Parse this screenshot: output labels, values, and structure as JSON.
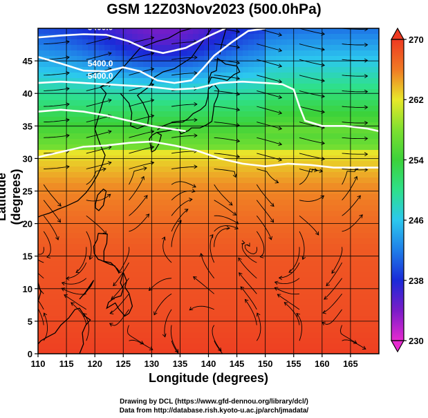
{
  "chart_data": {
    "type": "heatmap",
    "title": "GSM 12Z03Nov2023 (500.0hPa)",
    "xlabel": "Longitude (degrees)",
    "ylabel": "Latitude  (degrees)",
    "xlim": [
      110,
      170
    ],
    "ylim": [
      0,
      50
    ],
    "x_ticks": [
      "110",
      "115",
      "120",
      "125",
      "130",
      "135",
      "140",
      "145",
      "150",
      "155",
      "160",
      "165"
    ],
    "y_ticks": [
      "0",
      "5",
      "10",
      "15",
      "20",
      "25",
      "30",
      "35",
      "40",
      "45"
    ],
    "colorbar": {
      "range": [
        230,
        270
      ],
      "ticks": [
        "230",
        "238",
        "246",
        "254",
        "262",
        "270"
      ],
      "stops": [
        {
          "v": 230,
          "color": "#e62ad0"
        },
        {
          "v": 234,
          "color": "#7a1cc8"
        },
        {
          "v": 238,
          "color": "#1a2ad8"
        },
        {
          "v": 242,
          "color": "#1f7ee8"
        },
        {
          "v": 246,
          "color": "#2cc8ee"
        },
        {
          "v": 250,
          "color": "#2ee08a"
        },
        {
          "v": 254,
          "color": "#3cd23a"
        },
        {
          "v": 258,
          "color": "#7ee030"
        },
        {
          "v": 262,
          "color": "#e8e82a"
        },
        {
          "v": 266,
          "color": "#f07a24"
        },
        {
          "v": 270,
          "color": "#ee3a22"
        }
      ]
    },
    "contours": [
      {
        "label": "5400.0",
        "value": 5400,
        "points": [
          [
            110,
            48.6
          ],
          [
            114,
            48.9
          ],
          [
            118,
            49.1
          ],
          [
            122,
            49.0
          ],
          [
            126,
            48.0
          ],
          [
            129,
            46.8
          ],
          [
            132,
            46.2
          ],
          [
            136,
            47.0
          ],
          [
            140,
            48.8
          ],
          [
            143,
            50
          ]
        ]
      },
      {
        "label": "5400.0",
        "value": 5400,
        "points": [
          [
            110,
            45.6
          ],
          [
            114,
            44.6
          ],
          [
            118,
            43.5
          ],
          [
            122,
            43.4
          ],
          [
            125,
            44.0
          ],
          [
            128,
            43.4
          ],
          [
            131,
            42.0
          ],
          [
            134,
            41.6
          ],
          [
            137,
            42.0
          ],
          [
            139,
            43.8
          ],
          [
            141,
            45.8
          ],
          [
            144,
            47.8
          ],
          [
            147,
            49.6
          ],
          [
            150,
            50
          ]
        ]
      },
      {
        "label": "5400.0",
        "value": 5400,
        "points": [
          [
            110,
            41.6
          ],
          [
            114,
            41.8
          ],
          [
            118,
            41.6
          ],
          [
            122,
            41.4
          ],
          [
            126,
            41.2
          ],
          [
            130,
            41.0
          ],
          [
            134,
            40.6
          ],
          [
            138,
            40.8
          ],
          [
            142,
            41.6
          ],
          [
            146,
            41.8
          ],
          [
            150,
            41.6
          ],
          [
            153,
            41.4
          ],
          [
            155,
            40.6
          ],
          [
            156,
            38.0
          ],
          [
            157,
            35.8
          ],
          [
            160,
            35.0
          ],
          [
            164,
            35.0
          ],
          [
            168,
            34.6
          ],
          [
            170,
            34.2
          ]
        ]
      },
      {
        "label": "",
        "value": 5600,
        "points": [
          [
            110,
            37.2
          ],
          [
            114,
            37.5
          ],
          [
            118,
            37.2
          ],
          [
            122,
            36.6
          ],
          [
            126,
            35.8
          ],
          [
            130,
            35.0
          ],
          [
            133,
            34.6
          ],
          [
            136,
            34.2
          ]
        ]
      },
      {
        "label": "",
        "value": 5800,
        "points": [
          [
            110,
            30.2
          ],
          [
            114,
            31.0
          ],
          [
            118,
            31.8
          ],
          [
            122,
            32.0
          ],
          [
            126,
            32.4
          ],
          [
            130,
            32.6
          ],
          [
            134,
            32.0
          ],
          [
            138,
            31.2
          ],
          [
            142,
            30.0
          ],
          [
            146,
            29.2
          ],
          [
            150,
            28.8
          ],
          [
            154,
            29.2
          ],
          [
            158,
            29.0
          ],
          [
            162,
            28.6
          ],
          [
            166,
            28.6
          ],
          [
            170,
            28.6
          ]
        ]
      }
    ],
    "series": []
  },
  "credit": {
    "line1": "Drawing by DCL (https://www.gfd-dennou.org/library/dcl/)",
    "line2": "Data from http://database.rish.kyoto-u.ac.jp/arch/jmadata/"
  }
}
